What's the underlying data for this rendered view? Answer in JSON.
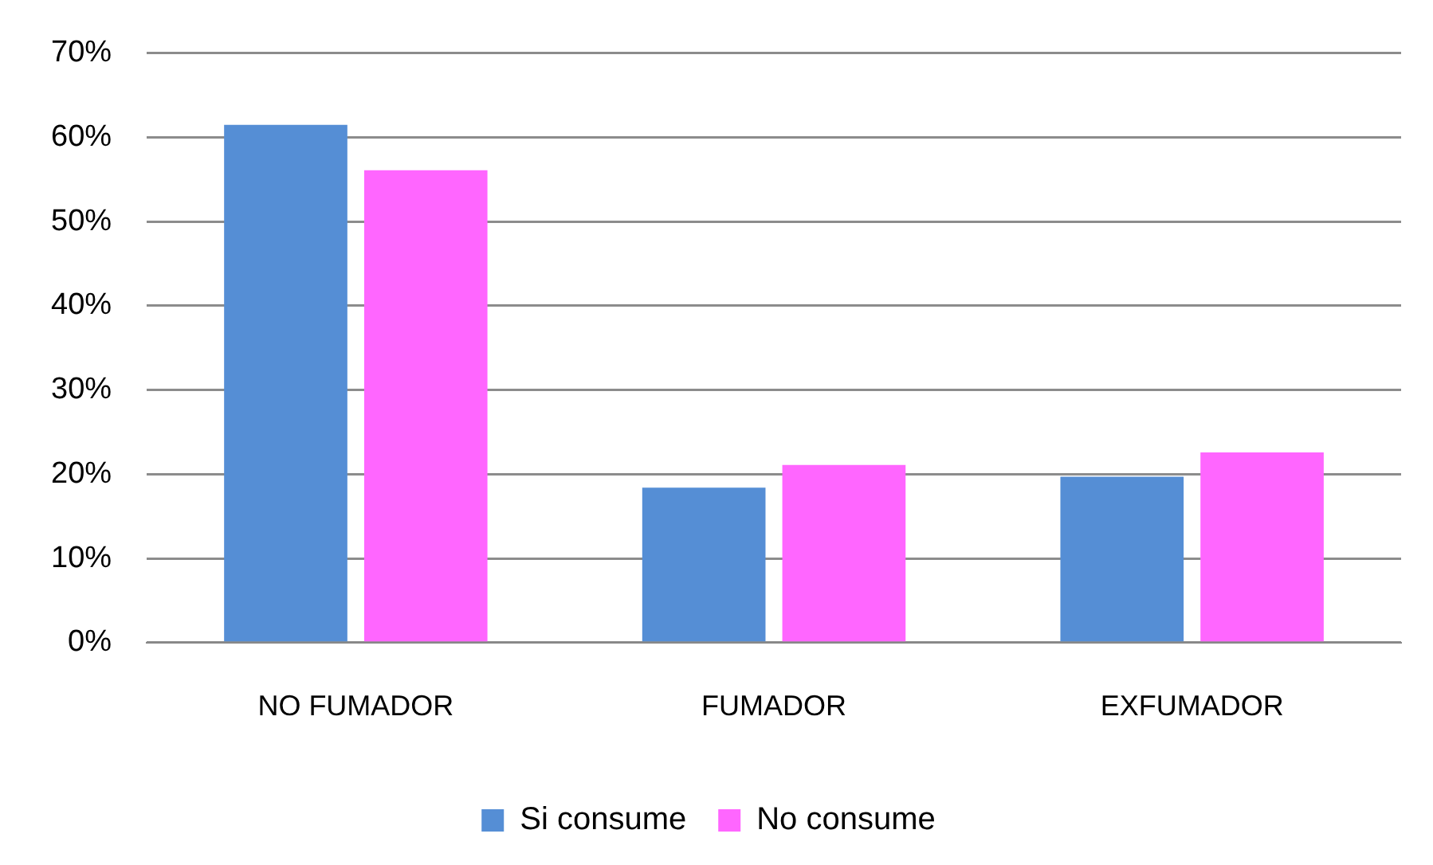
{
  "chart_data": {
    "type": "bar",
    "categories": [
      "NO FUMADOR",
      "FUMADOR",
      "EXFUMADOR"
    ],
    "series": [
      {
        "name": "Si consume",
        "color": "#558ed5",
        "values": [
          61.5,
          18.4,
          19.7
        ]
      },
      {
        "name": "No consume",
        "color": "#ff66ff",
        "values": [
          56.1,
          21.1,
          22.6
        ]
      }
    ],
    "ylim": [
      0,
      70
    ],
    "yticks": [
      {
        "value": 0,
        "label": "0%"
      },
      {
        "value": 10,
        "label": "10%"
      },
      {
        "value": 20,
        "label": "20%"
      },
      {
        "value": 30,
        "label": "30%"
      },
      {
        "value": 40,
        "label": "40%"
      },
      {
        "value": 50,
        "label": "50%"
      },
      {
        "value": 60,
        "label": "60%"
      },
      {
        "value": 70,
        "label": "70%"
      }
    ],
    "grid": "y",
    "legend": "bottom"
  }
}
